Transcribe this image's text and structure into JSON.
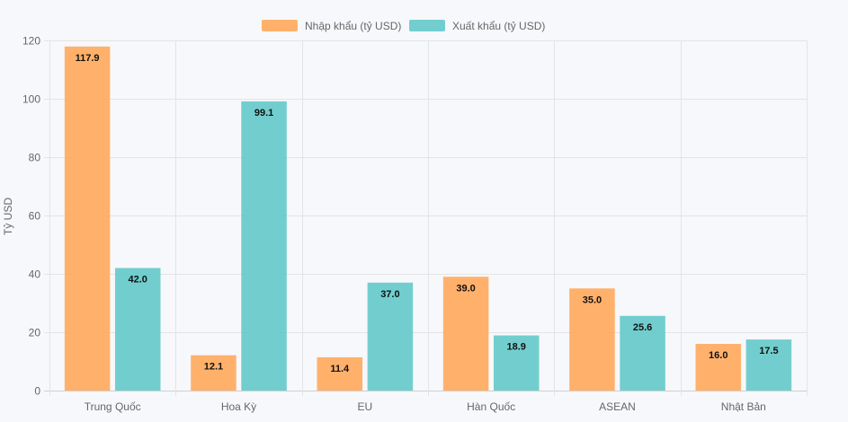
{
  "chart_data": {
    "type": "bar",
    "title": "",
    "xlabel": "",
    "ylabel": "Tỷ USD",
    "ylim": [
      0,
      120
    ],
    "yticks": [
      0,
      20,
      40,
      60,
      80,
      100,
      120
    ],
    "grid": true,
    "legend_position": "top-center",
    "categories": [
      "Trung Quốc",
      "Hoa Kỳ",
      "EU",
      "Hàn Quốc",
      "ASEAN",
      "Nhật Bản"
    ],
    "series": [
      {
        "name": "Nhập khẩu (tỷ USD)",
        "color": "#ffa95c",
        "values": [
          117.9,
          12.1,
          11.4,
          39.0,
          35.0,
          16.0
        ]
      },
      {
        "name": "Xuất khẩu (tỷ USD)",
        "color": "#63c9c9",
        "values": [
          42.0,
          99.1,
          37.0,
          18.9,
          25.6,
          17.5
        ]
      }
    ]
  }
}
